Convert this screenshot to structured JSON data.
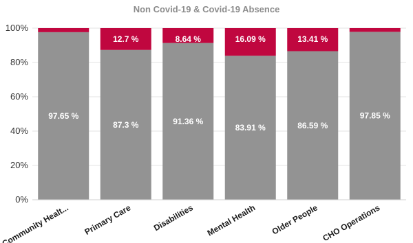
{
  "chart_data": {
    "type": "bar",
    "stacked": "percent",
    "title": "Non Covid-19 & Covid-19 Absence",
    "categories": [
      "Community Healt...",
      "Primary Care",
      "Disabilities",
      "Mental Health",
      "Older People",
      "CHO Operations"
    ],
    "series": [
      {
        "values": [
          97.65,
          87.3,
          91.36,
          83.91,
          86.59,
          97.85
        ],
        "labels": [
          "97.65 %",
          "87.3 %",
          "91.36 %",
          "83.91 %",
          "86.59 %",
          "97.85 %"
        ],
        "color": "#939393"
      },
      {
        "values": [
          2.35,
          12.7,
          8.64,
          16.09,
          13.41,
          2.15
        ],
        "labels": [
          "",
          "12.7 %",
          "8.64 %",
          "16.09 %",
          "13.41 %",
          ""
        ],
        "color": "#c0073f"
      }
    ],
    "ylim": [
      0,
      100
    ],
    "yticks": [
      "0%",
      "20%",
      "40%",
      "60%",
      "80%",
      "100%"
    ],
    "grid": true,
    "legend": "none"
  }
}
